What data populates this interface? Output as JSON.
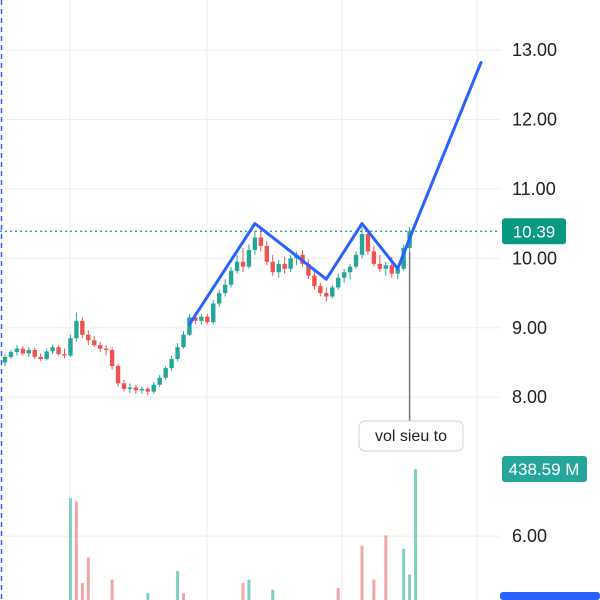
{
  "chart_data": {
    "type": "candlestick",
    "title": "",
    "xlabel": "",
    "ylabel": "",
    "price_axis": {
      "ticks": [
        "13.00",
        "12.00",
        "11.00",
        "10.00",
        "9.00",
        "8.00",
        "6.00"
      ],
      "tick_values": [
        13,
        12,
        11,
        10,
        9,
        8,
        6
      ],
      "ylim": [
        5.08,
        13.72
      ]
    },
    "last_price": {
      "value": 10.39,
      "label": "10.39",
      "color": "#089981"
    },
    "last_volume": {
      "label": "438.59 M",
      "color": "#26a69a"
    },
    "annotation": {
      "text": "vol sieu to"
    },
    "colors": {
      "up": "#26a69a",
      "down": "#ef5350",
      "drawing": "#2962ff",
      "grid": "#eeeeee"
    },
    "candles": [
      {
        "o": 8.5,
        "h": 8.62,
        "l": 8.45,
        "c": 8.58
      },
      {
        "o": 8.58,
        "h": 8.68,
        "l": 8.55,
        "c": 8.65
      },
      {
        "o": 8.65,
        "h": 8.75,
        "l": 8.6,
        "c": 8.7
      },
      {
        "o": 8.7,
        "h": 8.74,
        "l": 8.6,
        "c": 8.63
      },
      {
        "o": 8.63,
        "h": 8.72,
        "l": 8.58,
        "c": 8.68
      },
      {
        "o": 8.68,
        "h": 8.71,
        "l": 8.55,
        "c": 8.58
      },
      {
        "o": 8.58,
        "h": 8.63,
        "l": 8.52,
        "c": 8.55
      },
      {
        "o": 8.55,
        "h": 8.7,
        "l": 8.53,
        "c": 8.66
      },
      {
        "o": 8.66,
        "h": 8.76,
        "l": 8.62,
        "c": 8.72
      },
      {
        "o": 8.72,
        "h": 8.75,
        "l": 8.6,
        "c": 8.62
      },
      {
        "o": 8.62,
        "h": 8.7,
        "l": 8.56,
        "c": 8.6
      },
      {
        "o": 8.6,
        "h": 8.9,
        "l": 8.58,
        "c": 8.85
      },
      {
        "o": 8.85,
        "h": 9.22,
        "l": 8.8,
        "c": 9.1
      },
      {
        "o": 9.1,
        "h": 9.15,
        "l": 8.85,
        "c": 8.9
      },
      {
        "o": 8.9,
        "h": 8.96,
        "l": 8.75,
        "c": 8.82
      },
      {
        "o": 8.82,
        "h": 8.88,
        "l": 8.72,
        "c": 8.75
      },
      {
        "o": 8.75,
        "h": 8.8,
        "l": 8.65,
        "c": 8.7
      },
      {
        "o": 8.7,
        "h": 8.75,
        "l": 8.6,
        "c": 8.68
      },
      {
        "o": 8.68,
        "h": 8.72,
        "l": 8.4,
        "c": 8.45
      },
      {
        "o": 8.45,
        "h": 8.48,
        "l": 8.15,
        "c": 8.2
      },
      {
        "o": 8.2,
        "h": 8.25,
        "l": 8.08,
        "c": 8.12
      },
      {
        "o": 8.12,
        "h": 8.2,
        "l": 8.06,
        "c": 8.14
      },
      {
        "o": 8.14,
        "h": 8.18,
        "l": 8.05,
        "c": 8.1
      },
      {
        "o": 8.1,
        "h": 8.15,
        "l": 8.05,
        "c": 8.12
      },
      {
        "o": 8.12,
        "h": 8.15,
        "l": 8.03,
        "c": 8.08
      },
      {
        "o": 8.08,
        "h": 8.22,
        "l": 8.05,
        "c": 8.18
      },
      {
        "o": 8.18,
        "h": 8.32,
        "l": 8.15,
        "c": 8.28
      },
      {
        "o": 8.28,
        "h": 8.45,
        "l": 8.25,
        "c": 8.42
      },
      {
        "o": 8.42,
        "h": 8.6,
        "l": 8.38,
        "c": 8.55
      },
      {
        "o": 8.55,
        "h": 8.78,
        "l": 8.52,
        "c": 8.72
      },
      {
        "o": 8.72,
        "h": 8.95,
        "l": 8.7,
        "c": 8.9
      },
      {
        "o": 8.9,
        "h": 9.2,
        "l": 8.88,
        "c": 9.15
      },
      {
        "o": 9.15,
        "h": 9.22,
        "l": 9.05,
        "c": 9.1
      },
      {
        "o": 9.1,
        "h": 9.2,
        "l": 9.05,
        "c": 9.16
      },
      {
        "o": 9.16,
        "h": 9.2,
        "l": 9.05,
        "c": 9.08
      },
      {
        "o": 9.08,
        "h": 9.4,
        "l": 9.05,
        "c": 9.35
      },
      {
        "o": 9.35,
        "h": 9.55,
        "l": 9.3,
        "c": 9.5
      },
      {
        "o": 9.5,
        "h": 9.7,
        "l": 9.45,
        "c": 9.62
      },
      {
        "o": 9.62,
        "h": 9.88,
        "l": 9.58,
        "c": 9.82
      },
      {
        "o": 9.82,
        "h": 10.05,
        "l": 9.78,
        "c": 9.95
      },
      {
        "o": 9.95,
        "h": 10.15,
        "l": 9.8,
        "c": 9.88
      },
      {
        "o": 9.88,
        "h": 10.2,
        "l": 9.85,
        "c": 10.12
      },
      {
        "o": 10.12,
        "h": 10.4,
        "l": 10.05,
        "c": 10.3
      },
      {
        "o": 10.3,
        "h": 10.42,
        "l": 10.1,
        "c": 10.18
      },
      {
        "o": 10.18,
        "h": 10.25,
        "l": 9.9,
        "c": 9.95
      },
      {
        "o": 9.95,
        "h": 10.05,
        "l": 9.75,
        "c": 9.8
      },
      {
        "o": 9.8,
        "h": 9.98,
        "l": 9.72,
        "c": 9.92
      },
      {
        "o": 9.92,
        "h": 10.02,
        "l": 9.78,
        "c": 9.85
      },
      {
        "o": 9.85,
        "h": 10.05,
        "l": 9.8,
        "c": 10.0
      },
      {
        "o": 10.0,
        "h": 10.1,
        "l": 9.9,
        "c": 10.05
      },
      {
        "o": 10.05,
        "h": 10.12,
        "l": 9.88,
        "c": 9.92
      },
      {
        "o": 9.92,
        "h": 9.98,
        "l": 9.7,
        "c": 9.75
      },
      {
        "o": 9.75,
        "h": 9.82,
        "l": 9.55,
        "c": 9.6
      },
      {
        "o": 9.6,
        "h": 9.65,
        "l": 9.45,
        "c": 9.5
      },
      {
        "o": 9.5,
        "h": 9.58,
        "l": 9.38,
        "c": 9.45
      },
      {
        "o": 9.45,
        "h": 9.62,
        "l": 9.42,
        "c": 9.58
      },
      {
        "o": 9.58,
        "h": 9.78,
        "l": 9.55,
        "c": 9.72
      },
      {
        "o": 9.72,
        "h": 9.85,
        "l": 9.65,
        "c": 9.8
      },
      {
        "o": 9.8,
        "h": 9.92,
        "l": 9.7,
        "c": 9.88
      },
      {
        "o": 9.88,
        "h": 10.1,
        "l": 9.85,
        "c": 10.05
      },
      {
        "o": 10.05,
        "h": 10.45,
        "l": 10.0,
        "c": 10.35
      },
      {
        "o": 10.35,
        "h": 10.42,
        "l": 10.05,
        "c": 10.1
      },
      {
        "o": 10.1,
        "h": 10.18,
        "l": 9.88,
        "c": 9.92
      },
      {
        "o": 9.92,
        "h": 10.05,
        "l": 9.8,
        "c": 9.85
      },
      {
        "o": 9.85,
        "h": 9.95,
        "l": 9.75,
        "c": 9.9
      },
      {
        "o": 9.9,
        "h": 10.02,
        "l": 9.72,
        "c": 9.78
      },
      {
        "o": 9.78,
        "h": 9.9,
        "l": 9.7,
        "c": 9.85
      },
      {
        "o": 9.85,
        "h": 10.2,
        "l": 9.82,
        "c": 10.15
      },
      {
        "o": 10.15,
        "h": 10.45,
        "l": 10.1,
        "c": 10.39
      }
    ],
    "volume_bars": [
      {
        "i": 11,
        "v": 0.6,
        "up": true
      },
      {
        "i": 12,
        "v": 0.58,
        "up": false
      },
      {
        "i": 13,
        "v": 0.1,
        "up": false
      },
      {
        "i": 14,
        "v": 0.25,
        "up": false
      },
      {
        "i": 18,
        "v": 0.12,
        "up": false
      },
      {
        "i": 24,
        "v": 0.04,
        "up": true
      },
      {
        "i": 29,
        "v": 0.17,
        "up": true
      },
      {
        "i": 30,
        "v": 0.04,
        "up": false
      },
      {
        "i": 40,
        "v": 0.1,
        "up": false
      },
      {
        "i": 41,
        "v": 0.12,
        "up": true
      },
      {
        "i": 45,
        "v": 0.06,
        "up": true
      },
      {
        "i": 56,
        "v": 0.07,
        "up": false
      },
      {
        "i": 60,
        "v": 0.32,
        "up": false
      },
      {
        "i": 62,
        "v": 0.12,
        "up": false
      },
      {
        "i": 64,
        "v": 0.38,
        "up": false
      },
      {
        "i": 67,
        "v": 0.3,
        "up": true
      },
      {
        "i": 68,
        "v": 0.15,
        "up": true
      },
      {
        "i": 69,
        "v": 0.77,
        "up": true
      }
    ],
    "drawing": [
      {
        "i": 31,
        "p": 9.05
      },
      {
        "i": 42,
        "p": 10.5
      },
      {
        "i": 54,
        "p": 9.7
      },
      {
        "i": 60,
        "p": 10.5
      },
      {
        "i": 66,
        "p": 9.85
      },
      {
        "i": 69,
        "p": 10.5
      },
      {
        "i": 80,
        "p": 12.82
      }
    ]
  }
}
